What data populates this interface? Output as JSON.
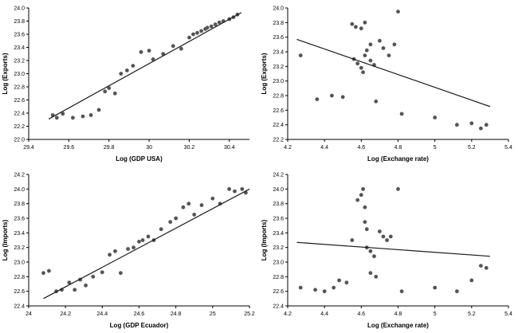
{
  "style": {
    "point_color": "#555555",
    "trend_color": "#1a1a1a",
    "axis_color": "#000000",
    "background": "#ffffff"
  },
  "chart_data": [
    {
      "type": "scatter",
      "position": "top-left",
      "xlabel": "Log (GDP USA)",
      "ylabel": "Log (Exports)",
      "xlim": [
        29.4,
        30.5
      ],
      "ylim": [
        22.0,
        24.0
      ],
      "xtick_vals": [
        29.4,
        29.6,
        29.8,
        30.0,
        30.2,
        30.4
      ],
      "xtick_labels": [
        "29.4",
        "29.6",
        "29.8",
        "30",
        "30.2",
        "30.4"
      ],
      "ytick_vals": [
        22.0,
        22.2,
        22.4,
        22.6,
        22.8,
        23.0,
        23.2,
        23.4,
        23.6,
        23.8,
        24.0
      ],
      "ytick_labels": [
        "22.0",
        "22.2",
        "22.4",
        "22.6",
        "22.8",
        "23.0",
        "23.2",
        "23.4",
        "23.6",
        "23.8",
        "24.0"
      ],
      "points": [
        [
          29.52,
          22.37
        ],
        [
          29.54,
          22.33
        ],
        [
          29.57,
          22.39
        ],
        [
          29.62,
          22.33
        ],
        [
          29.67,
          22.35
        ],
        [
          29.71,
          22.37
        ],
        [
          29.75,
          22.45
        ],
        [
          29.78,
          22.73
        ],
        [
          29.8,
          22.78
        ],
        [
          29.83,
          22.7
        ],
        [
          29.86,
          23.0
        ],
        [
          29.89,
          23.05
        ],
        [
          29.92,
          23.12
        ],
        [
          29.96,
          23.33
        ],
        [
          30.0,
          23.35
        ],
        [
          30.02,
          23.22
        ],
        [
          30.07,
          23.3
        ],
        [
          30.12,
          23.42
        ],
        [
          30.16,
          23.38
        ],
        [
          30.2,
          23.55
        ],
        [
          30.22,
          23.6
        ],
        [
          30.24,
          23.62
        ],
        [
          30.26,
          23.65
        ],
        [
          30.28,
          23.68
        ],
        [
          30.29,
          23.7
        ],
        [
          30.31,
          23.72
        ],
        [
          30.33,
          23.75
        ],
        [
          30.35,
          23.78
        ],
        [
          30.37,
          23.8
        ],
        [
          30.4,
          23.83
        ],
        [
          30.42,
          23.86
        ],
        [
          30.44,
          23.9
        ]
      ],
      "trend": [
        [
          29.5,
          22.31
        ],
        [
          30.46,
          23.93
        ]
      ]
    },
    {
      "type": "scatter",
      "position": "top-right",
      "xlabel": "Log (Exchange rate)",
      "ylabel": "Log (Exports)",
      "xlim": [
        4.2,
        5.4
      ],
      "ylim": [
        22.2,
        24.0
      ],
      "xtick_vals": [
        4.2,
        4.4,
        4.6,
        4.8,
        5.0,
        5.2,
        5.4
      ],
      "xtick_labels": [
        "4.2",
        "4.4",
        "4.6",
        "4.8",
        "5",
        "5.2",
        "5.4"
      ],
      "ytick_vals": [
        22.2,
        22.4,
        22.6,
        22.8,
        23.0,
        23.2,
        23.4,
        23.6,
        23.8,
        24.0
      ],
      "ytick_labels": [
        "22.2",
        "22.4",
        "22.6",
        "22.8",
        "23.0",
        "23.2",
        "23.4",
        "23.6",
        "23.8",
        "24.0"
      ],
      "points": [
        [
          4.27,
          23.35
        ],
        [
          4.36,
          22.75
        ],
        [
          4.44,
          22.8
        ],
        [
          4.5,
          22.78
        ],
        [
          4.55,
          23.78
        ],
        [
          4.57,
          23.74
        ],
        [
          4.6,
          23.72
        ],
        [
          4.62,
          23.8
        ],
        [
          4.56,
          23.3
        ],
        [
          4.58,
          23.24
        ],
        [
          4.6,
          23.18
        ],
        [
          4.61,
          23.12
        ],
        [
          4.62,
          23.35
        ],
        [
          4.63,
          23.42
        ],
        [
          4.65,
          23.5
        ],
        [
          4.65,
          23.28
        ],
        [
          4.67,
          23.22
        ],
        [
          4.68,
          22.72
        ],
        [
          4.7,
          23.55
        ],
        [
          4.72,
          23.45
        ],
        [
          4.75,
          23.35
        ],
        [
          4.78,
          23.5
        ],
        [
          4.8,
          23.95
        ],
        [
          4.82,
          22.55
        ],
        [
          5.0,
          22.5
        ],
        [
          5.12,
          22.4
        ],
        [
          5.2,
          22.42
        ],
        [
          5.25,
          22.35
        ],
        [
          5.28,
          22.4
        ]
      ],
      "trend": [
        [
          4.25,
          23.57
        ],
        [
          5.3,
          22.65
        ]
      ]
    },
    {
      "type": "scatter",
      "position": "bottom-left",
      "xlabel": "Log (GDP Ecuador)",
      "ylabel": "Log (Imports)",
      "xlim": [
        24.0,
        25.2
      ],
      "ylim": [
        22.4,
        24.2
      ],
      "xtick_vals": [
        24.0,
        24.2,
        24.4,
        24.6,
        24.8,
        25.0,
        25.2
      ],
      "xtick_labels": [
        "24",
        "24.2",
        "24.4",
        "24.6",
        "24.8",
        "25",
        "25.2"
      ],
      "ytick_vals": [
        22.4,
        22.6,
        22.8,
        23.0,
        23.2,
        23.4,
        23.6,
        23.8,
        24.0,
        24.2
      ],
      "ytick_labels": [
        "22.4",
        "22.6",
        "22.8",
        "23.0",
        "23.2",
        "23.4",
        "23.6",
        "23.8",
        "24.0",
        "24.2"
      ],
      "points": [
        [
          24.08,
          22.85
        ],
        [
          24.11,
          22.88
        ],
        [
          24.15,
          22.6
        ],
        [
          24.18,
          22.62
        ],
        [
          24.22,
          22.72
        ],
        [
          24.25,
          22.62
        ],
        [
          24.28,
          22.76
        ],
        [
          24.31,
          22.68
        ],
        [
          24.35,
          22.8
        ],
        [
          24.4,
          22.86
        ],
        [
          24.44,
          23.1
        ],
        [
          24.47,
          23.15
        ],
        [
          24.5,
          22.85
        ],
        [
          24.54,
          23.18
        ],
        [
          24.57,
          23.2
        ],
        [
          24.6,
          23.28
        ],
        [
          24.62,
          23.3
        ],
        [
          24.65,
          23.35
        ],
        [
          24.68,
          23.3
        ],
        [
          24.72,
          23.45
        ],
        [
          24.77,
          23.55
        ],
        [
          24.8,
          23.6
        ],
        [
          24.84,
          23.75
        ],
        [
          24.87,
          23.8
        ],
        [
          24.9,
          23.65
        ],
        [
          24.94,
          23.78
        ],
        [
          25.0,
          23.87
        ],
        [
          25.04,
          23.8
        ],
        [
          25.09,
          24.0
        ],
        [
          25.12,
          23.97
        ],
        [
          25.16,
          24.0
        ],
        [
          25.18,
          23.95
        ]
      ],
      "trend": [
        [
          24.08,
          22.5
        ],
        [
          25.2,
          24.0
        ]
      ]
    },
    {
      "type": "scatter",
      "position": "bottom-right",
      "xlabel": "Log (Exchange rate)",
      "ylabel": "Log (Imports)",
      "xlim": [
        4.2,
        5.4
      ],
      "ylim": [
        22.4,
        24.2
      ],
      "xtick_vals": [
        4.2,
        4.4,
        4.6,
        4.8,
        5.0,
        5.2,
        5.4
      ],
      "xtick_labels": [
        "4.2",
        "4.4",
        "4.6",
        "4.8",
        "5",
        "5.2",
        "5.4"
      ],
      "ytick_vals": [
        22.4,
        22.6,
        22.8,
        23.0,
        23.2,
        23.4,
        23.6,
        23.8,
        24.0,
        24.2
      ],
      "ytick_labels": [
        "22.4",
        "22.6",
        "22.8",
        "23.0",
        "23.2",
        "23.4",
        "23.6",
        "23.8",
        "24.0",
        "24.2"
      ],
      "points": [
        [
          4.27,
          22.65
        ],
        [
          4.35,
          22.62
        ],
        [
          4.4,
          22.6
        ],
        [
          4.45,
          22.65
        ],
        [
          4.48,
          22.75
        ],
        [
          4.52,
          22.72
        ],
        [
          4.55,
          23.3
        ],
        [
          4.58,
          23.85
        ],
        [
          4.6,
          23.92
        ],
        [
          4.61,
          24.0
        ],
        [
          4.62,
          23.75
        ],
        [
          4.62,
          23.55
        ],
        [
          4.63,
          23.45
        ],
        [
          4.63,
          23.2
        ],
        [
          4.65,
          23.15
        ],
        [
          4.65,
          22.85
        ],
        [
          4.67,
          23.08
        ],
        [
          4.68,
          22.8
        ],
        [
          4.7,
          23.42
        ],
        [
          4.72,
          23.35
        ],
        [
          4.74,
          23.3
        ],
        [
          4.76,
          23.35
        ],
        [
          4.8,
          24.0
        ],
        [
          4.82,
          22.6
        ],
        [
          5.0,
          22.65
        ],
        [
          5.12,
          22.6
        ],
        [
          5.2,
          22.75
        ],
        [
          5.25,
          22.95
        ],
        [
          5.28,
          22.92
        ]
      ],
      "trend": [
        [
          4.25,
          23.27
        ],
        [
          5.3,
          23.08
        ]
      ]
    }
  ]
}
